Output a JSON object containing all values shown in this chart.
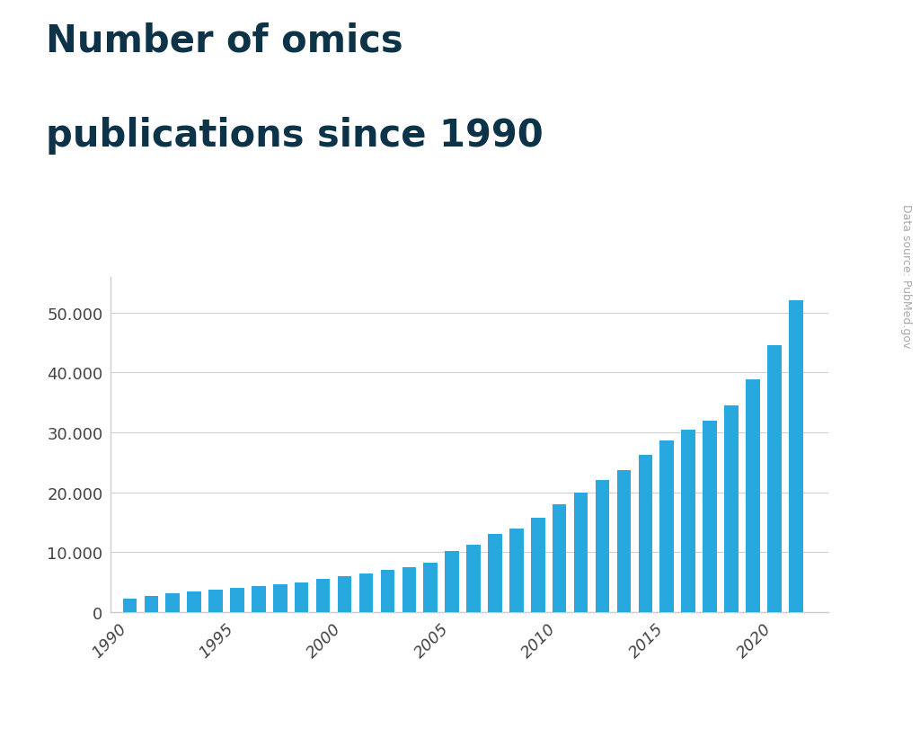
{
  "title_line1": "Number of omics",
  "title_line2": "publications since 1990",
  "title_color": "#0d3349",
  "bar_color": "#29a8e0",
  "background_color": "#ffffff",
  "source_text": "Data source: PubMed.gov",
  "years": [
    1990,
    1991,
    1992,
    1993,
    1994,
    1995,
    1996,
    1997,
    1998,
    1999,
    2000,
    2001,
    2002,
    2003,
    2004,
    2005,
    2006,
    2007,
    2008,
    2009,
    2010,
    2011,
    2012,
    2013,
    2014,
    2015,
    2016,
    2017,
    2018,
    2019,
    2020,
    2021
  ],
  "values": [
    2300,
    2700,
    3100,
    3500,
    3800,
    4100,
    4400,
    4700,
    5000,
    5500,
    6000,
    6400,
    7000,
    7500,
    8200,
    10200,
    11200,
    13000,
    14000,
    15800,
    18000,
    20000,
    22000,
    23700,
    26200,
    28700,
    30400,
    32000,
    34500,
    38800,
    44500,
    52000
  ],
  "ytick_values": [
    0,
    10000,
    20000,
    30000,
    40000,
    50000
  ],
  "ytick_labels": [
    "0",
    "10.000",
    "20.000",
    "30.000",
    "40.000",
    "50.000"
  ],
  "xtick_years": [
    1990,
    1995,
    2000,
    2005,
    2010,
    2015,
    2020
  ],
  "ylim": [
    0,
    56000
  ],
  "grid_color": "#d0d0d0",
  "axis_color": "#cccccc",
  "tick_label_color": "#444444",
  "title_fontsize": 30,
  "tick_fontsize": 13,
  "source_fontsize": 9,
  "bar_width": 0.65
}
